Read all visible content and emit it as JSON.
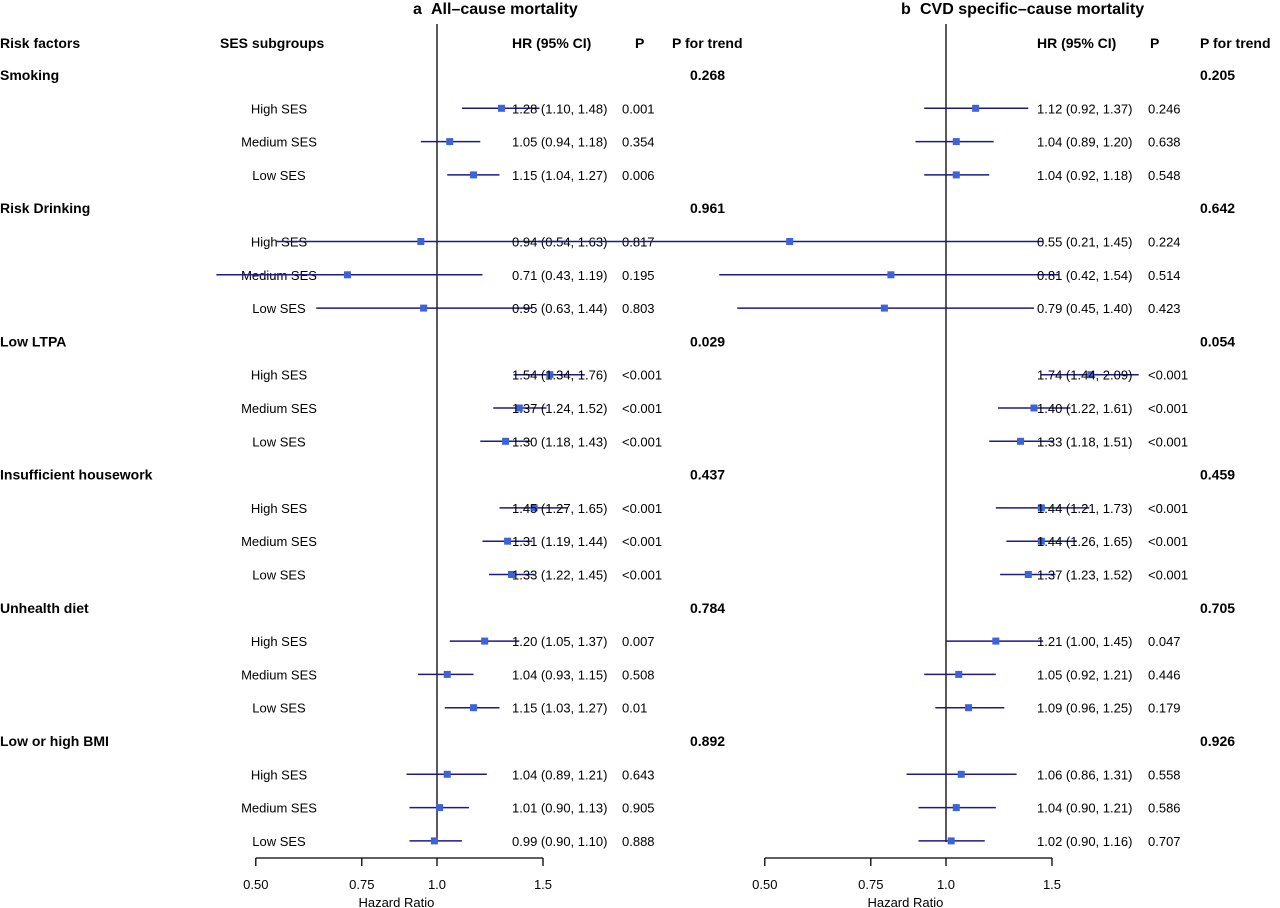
{
  "panels": [
    {
      "letter": "a",
      "title": "All–cause mortality"
    },
    {
      "letter": "b",
      "title": "CVD specific–cause mortality"
    }
  ],
  "headers": {
    "risk_factors": "Risk factors",
    "ses_subgroups": "SES subgroups",
    "hr": "HR (95% CI)",
    "p": "P",
    "p_trend": "P for trend"
  },
  "colors": {
    "marker": "#3f63d6",
    "ci_line": "#1c1a8c",
    "text": "#000000"
  },
  "chart_data": [
    {
      "type": "forest",
      "title": "All–cause mortality",
      "xlabel": "Hazard Ratio",
      "xscale": "log",
      "xlim": [
        0.5,
        1.5
      ],
      "reference_line": 1.0,
      "xticks": [
        0.5,
        0.75,
        1.0,
        1.5
      ],
      "xtick_labels": [
        "0.50",
        "0.75",
        "1.0",
        "1.5"
      ],
      "groups": [
        {
          "name": "Smoking",
          "p_trend": "0.268",
          "rows": [
            {
              "label": "High SES",
              "hr": 1.28,
              "lo": 1.1,
              "hi": 1.48,
              "text": "1.28 (1.10, 1.48)",
              "p": "0.001"
            },
            {
              "label": "Medium SES",
              "hr": 1.05,
              "lo": 0.94,
              "hi": 1.18,
              "text": "1.05 (0.94, 1.18)",
              "p": "0.354"
            },
            {
              "label": "Low SES",
              "hr": 1.15,
              "lo": 1.04,
              "hi": 1.27,
              "text": "1.15 (1.04, 1.27)",
              "p": "0.006"
            }
          ]
        },
        {
          "name": "Risk Drinking",
          "p_trend": "0.961",
          "rows": [
            {
              "label": "High SES",
              "hr": 0.94,
              "lo": 0.54,
              "hi": 1.63,
              "text": "0.94 (0.54, 1.63)",
              "p": "0.817"
            },
            {
              "label": "Medium SES",
              "hr": 0.71,
              "lo": 0.43,
              "hi": 1.19,
              "text": "0.71 (0.43, 1.19)",
              "p": "0.195"
            },
            {
              "label": "Low SES",
              "hr": 0.95,
              "lo": 0.63,
              "hi": 1.44,
              "text": "0.95 (0.63, 1.44)",
              "p": "0.803"
            }
          ]
        },
        {
          "name": "Low LTPA",
          "p_trend": "0.029",
          "rows": [
            {
              "label": "High SES",
              "hr": 1.54,
              "lo": 1.34,
              "hi": 1.76,
              "text": "1.54 (1.34, 1.76)",
              "p": "<0.001"
            },
            {
              "label": "Medium SES",
              "hr": 1.37,
              "lo": 1.24,
              "hi": 1.52,
              "text": "1.37 (1.24, 1.52)",
              "p": "<0.001"
            },
            {
              "label": "Low SES",
              "hr": 1.3,
              "lo": 1.18,
              "hi": 1.43,
              "text": "1.30 (1.18, 1.43)",
              "p": "<0.001"
            }
          ]
        },
        {
          "name": "Insufficient housework",
          "p_trend": "0.437",
          "rows": [
            {
              "label": "High SES",
              "hr": 1.45,
              "lo": 1.27,
              "hi": 1.65,
              "text": "1.45 (1.27, 1.65)",
              "p": "<0.001"
            },
            {
              "label": "Medium SES",
              "hr": 1.31,
              "lo": 1.19,
              "hi": 1.44,
              "text": "1.31 (1.19, 1.44)",
              "p": "<0.001"
            },
            {
              "label": "Low SES",
              "hr": 1.33,
              "lo": 1.22,
              "hi": 1.45,
              "text": "1.33 (1.22, 1.45)",
              "p": "<0.001"
            }
          ]
        },
        {
          "name": "Unhealth diet",
          "p_trend": "0.784",
          "rows": [
            {
              "label": "High SES",
              "hr": 1.2,
              "lo": 1.05,
              "hi": 1.37,
              "text": "1.20 (1.05, 1.37)",
              "p": "0.007"
            },
            {
              "label": "Medium SES",
              "hr": 1.04,
              "lo": 0.93,
              "hi": 1.15,
              "text": "1.04 (0.93, 1.15)",
              "p": "0.508"
            },
            {
              "label": "Low SES",
              "hr": 1.15,
              "lo": 1.03,
              "hi": 1.27,
              "text": "1.15 (1.03, 1.27)",
              "p": "0.01"
            }
          ]
        },
        {
          "name": "Low or high BMI",
          "p_trend": "0.892",
          "rows": [
            {
              "label": "High SES",
              "hr": 1.04,
              "lo": 0.89,
              "hi": 1.21,
              "text": "1.04 (0.89, 1.21)",
              "p": "0.643"
            },
            {
              "label": "Medium SES",
              "hr": 1.01,
              "lo": 0.9,
              "hi": 1.13,
              "text": "1.01 (0.90, 1.13)",
              "p": "0.905"
            },
            {
              "label": "Low SES",
              "hr": 0.99,
              "lo": 0.9,
              "hi": 1.1,
              "text": "0.99 (0.90, 1.10)",
              "p": "0.888"
            }
          ]
        }
      ]
    },
    {
      "type": "forest",
      "title": "CVD specific–cause mortality",
      "xlabel": "Hazard Ratio",
      "xscale": "log",
      "xlim": [
        0.5,
        1.5
      ],
      "reference_line": 1.0,
      "xticks": [
        0.5,
        0.75,
        1.0,
        1.5
      ],
      "xtick_labels": [
        "0.50",
        "0.75",
        "1.0",
        "1.5"
      ],
      "groups": [
        {
          "name": "Smoking",
          "p_trend": "0.205",
          "rows": [
            {
              "label": "High SES",
              "hr": 1.12,
              "lo": 0.92,
              "hi": 1.37,
              "text": "1.12 (0.92, 1.37)",
              "p": "0.246"
            },
            {
              "label": "Medium SES",
              "hr": 1.04,
              "lo": 0.89,
              "hi": 1.2,
              "text": "1.04 (0.89, 1.20)",
              "p": "0.638"
            },
            {
              "label": "Low SES",
              "hr": 1.04,
              "lo": 0.92,
              "hi": 1.18,
              "text": "1.04 (0.92, 1.18)",
              "p": "0.548"
            }
          ]
        },
        {
          "name": "Risk Drinking",
          "p_trend": "0.642",
          "rows": [
            {
              "label": "High SES",
              "hr": 0.55,
              "lo": 0.21,
              "hi": 1.45,
              "text": "0.55 (0.21, 1.45)",
              "p": "0.224"
            },
            {
              "label": "Medium SES",
              "hr": 0.81,
              "lo": 0.42,
              "hi": 1.54,
              "text": "0.81 (0.42, 1.54)",
              "p": "0.514"
            },
            {
              "label": "Low SES",
              "hr": 0.79,
              "lo": 0.45,
              "hi": 1.4,
              "text": "0.79 (0.45, 1.40)",
              "p": "0.423"
            }
          ]
        },
        {
          "name": "Low LTPA",
          "p_trend": "0.054",
          "rows": [
            {
              "label": "High SES",
              "hr": 1.74,
              "lo": 1.44,
              "hi": 2.09,
              "text": "1.74 (1.44, 2.09)",
              "p": "<0.001"
            },
            {
              "label": "Medium SES",
              "hr": 1.4,
              "lo": 1.22,
              "hi": 1.61,
              "text": "1.40 (1.22, 1.61)",
              "p": "<0.001"
            },
            {
              "label": "Low SES",
              "hr": 1.33,
              "lo": 1.18,
              "hi": 1.51,
              "text": "1.33 (1.18, 1.51)",
              "p": "<0.001"
            }
          ]
        },
        {
          "name": "Insufficient housework",
          "p_trend": "0.459",
          "rows": [
            {
              "label": "High SES",
              "hr": 1.44,
              "lo": 1.21,
              "hi": 1.73,
              "text": "1.44 (1.21, 1.73)",
              "p": "<0.001"
            },
            {
              "label": "Medium SES",
              "hr": 1.44,
              "lo": 1.26,
              "hi": 1.65,
              "text": "1.44 (1.26, 1.65)",
              "p": "<0.001"
            },
            {
              "label": "Low SES",
              "hr": 1.37,
              "lo": 1.23,
              "hi": 1.52,
              "text": "1.37 (1.23, 1.52)",
              "p": "<0.001"
            }
          ]
        },
        {
          "name": "Unhealth diet",
          "p_trend": "0.705",
          "rows": [
            {
              "label": "High SES",
              "hr": 1.21,
              "lo": 1.0,
              "hi": 1.45,
              "text": "1.21 (1.00, 1.45)",
              "p": "0.047"
            },
            {
              "label": "Medium SES",
              "hr": 1.05,
              "lo": 0.92,
              "hi": 1.21,
              "text": "1.05 (0.92, 1.21)",
              "p": "0.446"
            },
            {
              "label": "Low SES",
              "hr": 1.09,
              "lo": 0.96,
              "hi": 1.25,
              "text": "1.09 (0.96, 1.25)",
              "p": "0.179"
            }
          ]
        },
        {
          "name": "Low or high BMI",
          "p_trend": "0.926",
          "rows": [
            {
              "label": "High SES",
              "hr": 1.06,
              "lo": 0.86,
              "hi": 1.31,
              "text": "1.06 (0.86, 1.31)",
              "p": "0.558"
            },
            {
              "label": "Medium SES",
              "hr": 1.04,
              "lo": 0.9,
              "hi": 1.21,
              "text": "1.04 (0.90, 1.21)",
              "p": "0.586"
            },
            {
              "label": "Low SES",
              "hr": 1.02,
              "lo": 0.9,
              "hi": 1.16,
              "text": "1.02 (0.90, 1.16)",
              "p": "0.707"
            }
          ]
        }
      ]
    }
  ]
}
